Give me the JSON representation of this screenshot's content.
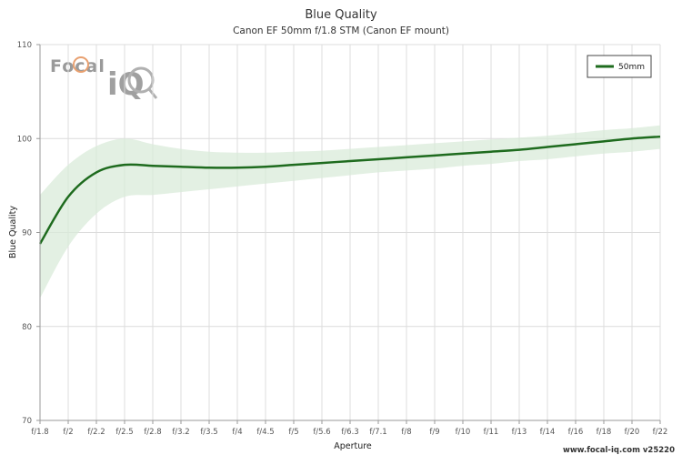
{
  "chart_data": {
    "type": "line",
    "title": "Blue Quality",
    "subtitle": "Canon EF 50mm f/1.8 STM (Canon EF mount)",
    "xlabel": "Aperture",
    "ylabel": "Blue Quality",
    "ylim": [
      70,
      110
    ],
    "yticks": [
      70,
      80,
      90,
      100,
      110
    ],
    "categories": [
      "f/1.8",
      "f/2",
      "f/2.2",
      "f/2.5",
      "f/2.8",
      "f/3.2",
      "f/3.5",
      "f/4",
      "f/4.5",
      "f/5",
      "f/5.6",
      "f/6.3",
      "f/7.1",
      "f/8",
      "f/9",
      "f/10",
      "f/11",
      "f/13",
      "f/14",
      "f/16",
      "f/18",
      "f/20",
      "f/22"
    ],
    "series": [
      {
        "name": "50mm",
        "color": "#1e6b1e",
        "band_color": "#d9ebd9",
        "values": [
          88.8,
          93.8,
          96.4,
          97.2,
          97.1,
          97.0,
          96.9,
          96.9,
          97.0,
          97.2,
          97.4,
          97.6,
          97.8,
          98.0,
          98.2,
          98.4,
          98.6,
          98.8,
          99.1,
          99.4,
          99.7,
          100.0,
          100.2
        ],
        "upper": [
          94.0,
          97.2,
          99.2,
          100.0,
          99.4,
          98.9,
          98.6,
          98.5,
          98.5,
          98.6,
          98.7,
          98.9,
          99.1,
          99.3,
          99.5,
          99.7,
          99.9,
          100.1,
          100.3,
          100.6,
          100.9,
          101.1,
          101.4
        ],
        "lower": [
          83.0,
          88.5,
          92.0,
          93.8,
          94.0,
          94.3,
          94.6,
          94.9,
          95.2,
          95.5,
          95.8,
          96.1,
          96.4,
          96.6,
          96.8,
          97.1,
          97.3,
          97.6,
          97.8,
          98.1,
          98.4,
          98.6,
          98.9
        ]
      }
    ],
    "grid": true,
    "legend_position": "top-right"
  },
  "branding": {
    "logo_text_1": "Focal",
    "logo_text_2": "iQ",
    "footer_text": "www.focal-iq.com  v25220"
  }
}
